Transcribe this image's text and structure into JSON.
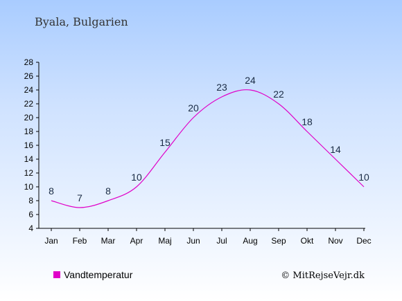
{
  "chart_data": {
    "type": "line",
    "title": "Byala, Bulgarien",
    "categories": [
      "Jan",
      "Feb",
      "Mar",
      "Apr",
      "Maj",
      "Jun",
      "Jul",
      "Aug",
      "Sep",
      "Okt",
      "Nov",
      "Dec"
    ],
    "series": [
      {
        "name": "Vandtemperatur",
        "values": [
          8,
          7,
          8,
          10,
          15,
          20,
          23,
          24,
          22,
          18,
          14,
          10
        ],
        "color": "#e000c8"
      }
    ],
    "ylim": [
      4,
      28
    ],
    "yticks": [
      4,
      6,
      8,
      10,
      12,
      14,
      16,
      18,
      20,
      22,
      24,
      26,
      28
    ],
    "grid": false,
    "legend": "bottom-left",
    "credit": "© MitRejseVejr.dk"
  }
}
